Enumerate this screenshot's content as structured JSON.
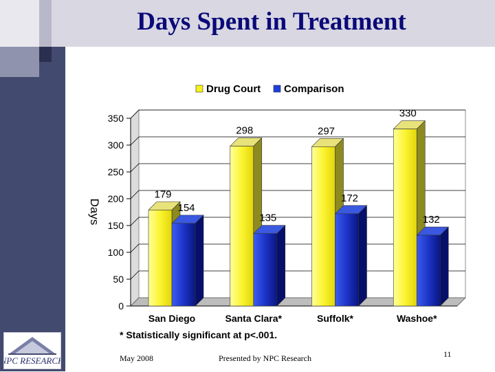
{
  "slide": {
    "title": "Days Spent in Treatment",
    "footnote": "* Statistically significant at p<.001.",
    "footer_left": "May 2008",
    "footer_center": "Presented by NPC Research",
    "page_number": "11",
    "logo_text": "NPC RESEARCH"
  },
  "colors": {
    "drug_court": "#f7f21a",
    "comparison": "#1f3fd9",
    "title": "#0a0a78",
    "sidebar": "#434a6f"
  },
  "chart_data": {
    "type": "bar",
    "title": "",
    "xlabel": "",
    "ylabel": "Days",
    "ylim": [
      0,
      350
    ],
    "yticks": [
      0,
      50,
      100,
      150,
      200,
      250,
      300,
      350
    ],
    "categories": [
      "San Diego",
      "Santa Clara*",
      "Suffolk*",
      "Washoe*"
    ],
    "series": [
      {
        "name": "Drug Court",
        "values": [
          179,
          298,
          297,
          330
        ]
      },
      {
        "name": "Comparison",
        "values": [
          154,
          135,
          172,
          132
        ]
      }
    ],
    "legend": "top-center",
    "grid": true
  }
}
